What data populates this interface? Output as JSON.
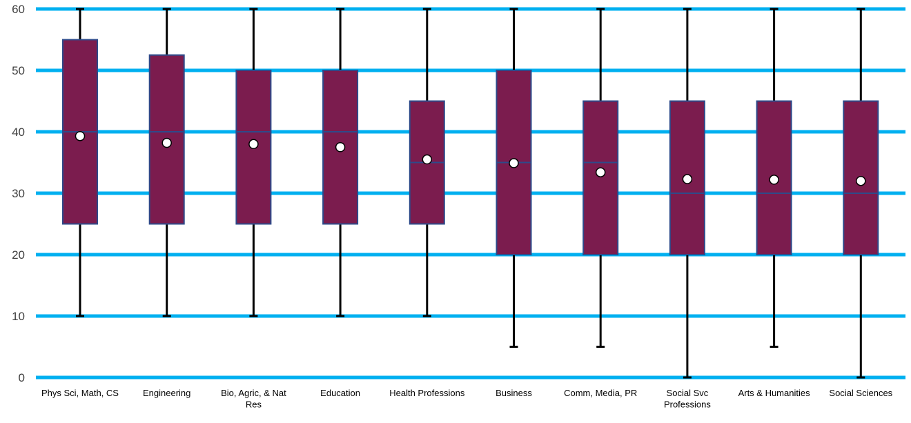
{
  "chart_data": {
    "type": "box",
    "title": "",
    "xlabel": "",
    "ylabel": "",
    "ylim": [
      0,
      60
    ],
    "yticks": [
      0,
      10,
      20,
      30,
      40,
      50,
      60
    ],
    "grid": true,
    "legend": "none",
    "colors": {
      "box_fill": "#7b1c4e",
      "box_edge": "#2e4a8a",
      "gridline": "#00b0f0",
      "whisker": "#000000",
      "mean_marker_fill": "#ffffff",
      "mean_marker_edge": "#000000"
    },
    "categories": [
      "Phys Sci, Math, CS",
      "Engineering",
      "Bio, Agric, & Nat Res",
      "Education",
      "Health Professions",
      "Business",
      "Comm, Media, PR",
      "Social Svc Professions",
      "Arts & Humanities",
      "Social Sciences"
    ],
    "boxes": [
      {
        "min": 10,
        "q1": 25,
        "median": 40,
        "q3": 55,
        "max": 60,
        "mean": 39.3
      },
      {
        "min": 10,
        "q1": 25,
        "median": 40,
        "q3": 52.5,
        "max": 60,
        "mean": 38.2
      },
      {
        "min": 10,
        "q1": 25,
        "median": 40,
        "q3": 50,
        "max": 60,
        "mean": 38.0
      },
      {
        "min": 10,
        "q1": 25,
        "median": 40,
        "q3": 50,
        "max": 60,
        "mean": 37.5
      },
      {
        "min": 10,
        "q1": 25,
        "median": 35,
        "q3": 45,
        "max": 60,
        "mean": 35.5
      },
      {
        "min": 5,
        "q1": 20,
        "median": 35,
        "q3": 50,
        "max": 60,
        "mean": 34.9
      },
      {
        "min": 5,
        "q1": 20,
        "median": 35,
        "q3": 45,
        "max": 60,
        "mean": 33.4
      },
      {
        "min": 0,
        "q1": 20,
        "median": 30,
        "q3": 45,
        "max": 60,
        "mean": 32.3
      },
      {
        "min": 5,
        "q1": 20,
        "median": 30,
        "q3": 45,
        "max": 60,
        "mean": 32.2
      },
      {
        "min": 0,
        "q1": 20,
        "median": 30,
        "q3": 45,
        "max": 60,
        "mean": 32.0
      }
    ]
  }
}
